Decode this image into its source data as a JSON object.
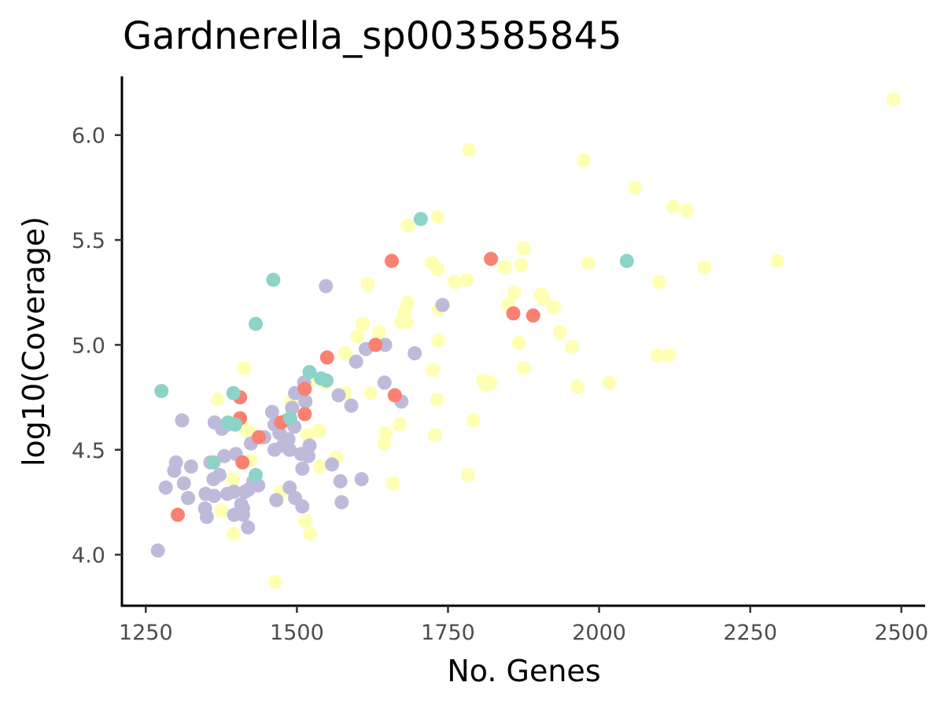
{
  "chart_data": {
    "type": "scatter",
    "title": "Gardnerella_sp003585845",
    "xlabel": "No. Genes",
    "ylabel": "log10(Coverage)",
    "xlim": [
      1220,
      2540
    ],
    "ylim": [
      3.75,
      6.27
    ],
    "xticks": [
      1250,
      1500,
      1750,
      2000,
      2250,
      2500
    ],
    "xtick_labels": [
      "1250",
      "1500",
      "1750",
      "2000",
      "2250",
      "2500"
    ],
    "yticks": [
      4.0,
      4.5,
      5.0,
      5.5,
      6.0
    ],
    "ytick_labels": [
      "4.0",
      "4.5",
      "5.0",
      "5.5",
      "6.0"
    ],
    "grid": false,
    "legend": "none",
    "colors": {
      "series_1": "#ffffb3",
      "series_2": "#bebada",
      "series_3": "#fb8072",
      "series_4": "#8dd3c7"
    },
    "series": [
      {
        "color": "#ffffb3",
        "points": [
          [
            2487,
            6.17
          ],
          [
            1785,
            5.93
          ],
          [
            1974,
            5.88
          ],
          [
            2060,
            5.75
          ],
          [
            2122,
            5.66
          ],
          [
            2145,
            5.64
          ],
          [
            1733,
            5.61
          ],
          [
            1684,
            5.57
          ],
          [
            1875,
            5.46
          ],
          [
            2295,
            5.4
          ],
          [
            1723,
            5.39
          ],
          [
            1733,
            5.36
          ],
          [
            1844,
            5.37
          ],
          [
            1871,
            5.38
          ],
          [
            1982,
            5.39
          ],
          [
            2174,
            5.37
          ],
          [
            1761,
            5.3
          ],
          [
            1781,
            5.31
          ],
          [
            2099,
            5.3
          ],
          [
            1617,
            5.29
          ],
          [
            1860,
            5.25
          ],
          [
            1904,
            5.24
          ],
          [
            1908,
            5.22
          ],
          [
            1925,
            5.18
          ],
          [
            1849,
            5.19
          ],
          [
            1683,
            5.2
          ],
          [
            1679,
            5.16
          ],
          [
            1735,
            5.17
          ],
          [
            1672,
            5.11
          ],
          [
            1681,
            5.11
          ],
          [
            1609,
            5.1
          ],
          [
            1636,
            5.06
          ],
          [
            1935,
            5.06
          ],
          [
            1734,
            5.02
          ],
          [
            1867,
            5.01
          ],
          [
            1955,
            4.99
          ],
          [
            1600,
            5.04
          ],
          [
            1580,
            4.96
          ],
          [
            2097,
            4.95
          ],
          [
            2116,
            4.95
          ],
          [
            1725,
            4.88
          ],
          [
            1875,
            4.89
          ],
          [
            1808,
            4.83
          ],
          [
            1813,
            4.81
          ],
          [
            1820,
            4.82
          ],
          [
            2017,
            4.82
          ],
          [
            1964,
            4.8
          ],
          [
            1622,
            4.77
          ],
          [
            1580,
            4.77
          ],
          [
            1732,
            4.74
          ],
          [
            1548,
            4.82
          ],
          [
            1524,
            4.83
          ],
          [
            1792,
            4.64
          ],
          [
            1670,
            4.62
          ],
          [
            1647,
            4.58
          ],
          [
            1644,
            4.53
          ],
          [
            1728,
            4.57
          ],
          [
            1537,
            4.59
          ],
          [
            1517,
            4.57
          ],
          [
            1413,
            4.89
          ],
          [
            1369,
            4.74
          ],
          [
            1422,
            4.58
          ],
          [
            1414,
            4.6
          ],
          [
            1491,
            4.73
          ],
          [
            1565,
            4.46
          ],
          [
            1538,
            4.42
          ],
          [
            1423,
            4.45
          ],
          [
            1394,
            4.36
          ],
          [
            1783,
            4.38
          ],
          [
            1659,
            4.34
          ],
          [
            1474,
            4.3
          ],
          [
            1375,
            4.21
          ],
          [
            1514,
            4.16
          ],
          [
            1522,
            4.1
          ],
          [
            1395,
            4.1
          ],
          [
            1464,
            3.87
          ]
        ]
      },
      {
        "color": "#bebada",
        "points": [
          [
            1548,
            5.28
          ],
          [
            1741,
            5.19
          ],
          [
            1646,
            5.0
          ],
          [
            1614,
            4.98
          ],
          [
            1695,
            4.96
          ],
          [
            1598,
            4.92
          ],
          [
            1645,
            4.82
          ],
          [
            1569,
            4.76
          ],
          [
            1590,
            4.71
          ],
          [
            1673,
            4.73
          ],
          [
            1497,
            4.77
          ],
          [
            1512,
            4.82
          ],
          [
            1514,
            4.73
          ],
          [
            1492,
            4.7
          ],
          [
            1459,
            4.68
          ],
          [
            1483,
            4.64
          ],
          [
            1463,
            4.62
          ],
          [
            1496,
            4.61
          ],
          [
            1471,
            4.58
          ],
          [
            1446,
            4.56
          ],
          [
            1486,
            4.55
          ],
          [
            1477,
            4.52
          ],
          [
            1463,
            4.5
          ],
          [
            1488,
            4.5
          ],
          [
            1507,
            4.48
          ],
          [
            1519,
            4.47
          ],
          [
            1509,
            4.41
          ],
          [
            1521,
            4.52
          ],
          [
            1310,
            4.64
          ],
          [
            1364,
            4.63
          ],
          [
            1386,
            4.62
          ],
          [
            1376,
            4.6
          ],
          [
            1424,
            4.53
          ],
          [
            1399,
            4.48
          ],
          [
            1380,
            4.47
          ],
          [
            1357,
            4.44
          ],
          [
            1300,
            4.44
          ],
          [
            1325,
            4.42
          ],
          [
            1297,
            4.4
          ],
          [
            1372,
            4.38
          ],
          [
            1362,
            4.36
          ],
          [
            1428,
            4.35
          ],
          [
            1436,
            4.33
          ],
          [
            1313,
            4.34
          ],
          [
            1283,
            4.32
          ],
          [
            1414,
            4.3
          ],
          [
            1385,
            4.29
          ],
          [
            1396,
            4.3
          ],
          [
            1363,
            4.28
          ],
          [
            1349,
            4.29
          ],
          [
            1320,
            4.27
          ],
          [
            1420,
            4.31
          ],
          [
            1408,
            4.24
          ],
          [
            1396,
            4.19
          ],
          [
            1411,
            4.19
          ],
          [
            1411,
            4.22
          ],
          [
            1348,
            4.22
          ],
          [
            1351,
            4.18
          ],
          [
            1419,
            4.13
          ],
          [
            1270,
            4.02
          ],
          [
            1488,
            4.32
          ],
          [
            1466,
            4.26
          ],
          [
            1497,
            4.27
          ],
          [
            1509,
            4.23
          ],
          [
            1558,
            4.43
          ],
          [
            1572,
            4.35
          ],
          [
            1574,
            4.25
          ],
          [
            1607,
            4.36
          ]
        ]
      },
      {
        "color": "#fb8072",
        "points": [
          [
            1821,
            5.41
          ],
          [
            1657,
            5.4
          ],
          [
            1858,
            5.15
          ],
          [
            1891,
            5.14
          ],
          [
            1630,
            5.0
          ],
          [
            1550,
            4.94
          ],
          [
            1662,
            4.76
          ],
          [
            1513,
            4.79
          ],
          [
            1406,
            4.75
          ],
          [
            1513,
            4.67
          ],
          [
            1406,
            4.65
          ],
          [
            1474,
            4.63
          ],
          [
            1437,
            4.56
          ],
          [
            1410,
            4.44
          ],
          [
            1303,
            4.19
          ]
        ]
      },
      {
        "color": "#8dd3c7",
        "points": [
          [
            1705,
            5.6
          ],
          [
            2046,
            5.4
          ],
          [
            1461,
            5.31
          ],
          [
            1432,
            5.1
          ],
          [
            1521,
            4.87
          ],
          [
            1540,
            4.84
          ],
          [
            1549,
            4.83
          ],
          [
            1276,
            4.78
          ],
          [
            1395,
            4.77
          ],
          [
            1386,
            4.63
          ],
          [
            1398,
            4.62
          ],
          [
            1489,
            4.65
          ],
          [
            1362,
            4.44
          ],
          [
            1432,
            4.38
          ]
        ]
      }
    ]
  }
}
